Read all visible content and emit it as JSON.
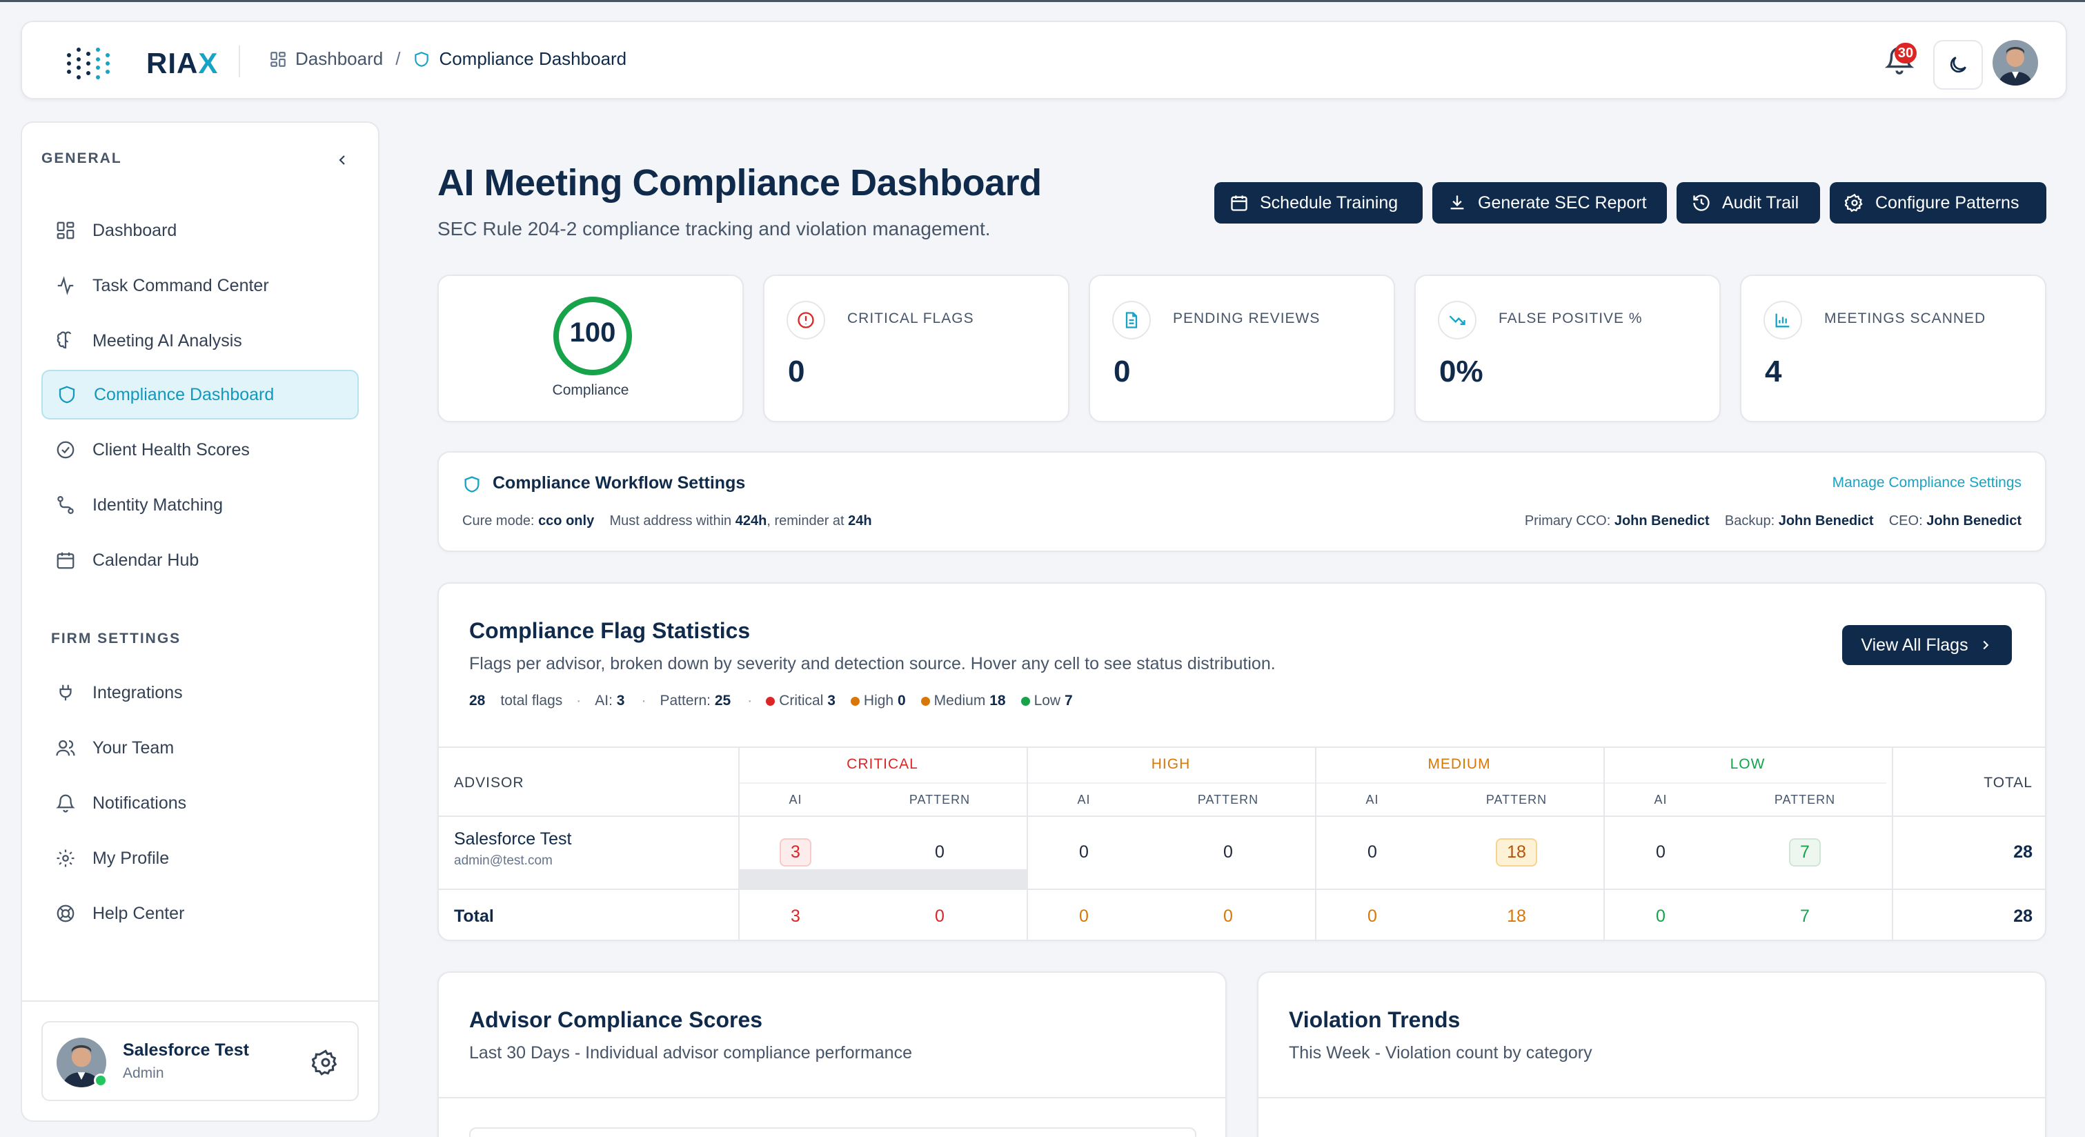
{
  "app": {
    "logo_text": "RIA",
    "logo_accent": "X"
  },
  "breadcrumb": {
    "home": "Dashboard",
    "separator": "/",
    "current": "Compliance Dashboard"
  },
  "header": {
    "notification_count": "30"
  },
  "sidebar": {
    "general_label": "GENERAL",
    "firm_label": "FIRM SETTINGS",
    "general_items": [
      {
        "label": "Dashboard",
        "icon": "grid-icon"
      },
      {
        "label": "Task Command Center",
        "icon": "activity-icon"
      },
      {
        "label": "Meeting AI Analysis",
        "icon": "brain-icon"
      },
      {
        "label": "Compliance Dashboard",
        "icon": "shield-icon",
        "active": true
      },
      {
        "label": "Client Health Scores",
        "icon": "check-circle-icon"
      },
      {
        "label": "Identity Matching",
        "icon": "route-icon"
      },
      {
        "label": "Calendar Hub",
        "icon": "calendar-icon"
      }
    ],
    "firm_items": [
      {
        "label": "Integrations",
        "icon": "plug-icon"
      },
      {
        "label": "Your Team",
        "icon": "users-icon"
      },
      {
        "label": "Notifications",
        "icon": "bell-icon"
      },
      {
        "label": "My Profile",
        "icon": "gear-icon"
      },
      {
        "label": "Help Center",
        "icon": "lifebuoy-icon"
      }
    ],
    "user": {
      "name": "Salesforce Test",
      "role": "Admin"
    }
  },
  "page": {
    "title": "AI Meeting Compliance Dashboard",
    "subtitle": "SEC Rule 204-2 compliance tracking and violation management."
  },
  "actions": {
    "schedule_training": "Schedule Training",
    "generate_report": "Generate SEC Report",
    "audit_trail": "Audit Trail",
    "configure_patterns": "Configure Patterns"
  },
  "stats": {
    "compliance_score": "100",
    "compliance_score_value": 100,
    "compliance_label": "Compliance",
    "critical_flags_label": "CRITICAL FLAGS",
    "critical_flags": "0",
    "pending_reviews_label": "PENDING REVIEWS",
    "pending_reviews": "0",
    "false_positive_label": "FALSE POSITIVE %",
    "false_positive": "0%",
    "meetings_scanned_label": "MEETINGS SCANNED",
    "meetings_scanned": "4"
  },
  "workflow": {
    "title": "Compliance Workflow Settings",
    "manage_link": "Manage Compliance Settings",
    "cure_mode_label": "Cure mode:",
    "cure_mode": "cco only",
    "address_label": "Must address within",
    "address_within": "424h",
    "reminder_label": ", reminder at",
    "reminder_at": "24h",
    "primary_cco_label": "Primary CCO:",
    "primary_cco": "John Benedict",
    "backup_label": "Backup:",
    "backup": "John Benedict",
    "ceo_label": "CEO:",
    "ceo": "John Benedict"
  },
  "flag_stats": {
    "title": "Compliance Flag Statistics",
    "subtitle": "Flags per advisor, broken down by severity and detection source. Hover any cell to see status distribution.",
    "view_all": "View All Flags",
    "total": "28",
    "total_label": "total flags",
    "ai_label": "AI:",
    "ai": "3",
    "pattern_label": "Pattern:",
    "pattern": "25",
    "critical_label": "Critical",
    "critical": "3",
    "high_label": "High",
    "high": "0",
    "medium_label": "Medium",
    "medium": "18",
    "low_label": "Low",
    "low": "7",
    "colors": {
      "critical": "#dc2626",
      "high": "#d97706",
      "medium": "#d97706",
      "low": "#16a34a"
    },
    "table": {
      "advisor_header": "ADVISOR",
      "total_header": "TOTAL",
      "severity_headers": [
        "CRITICAL",
        "HIGH",
        "MEDIUM",
        "LOW"
      ],
      "sub_headers": [
        "AI",
        "PATTERN"
      ],
      "row": {
        "name": "Salesforce Test",
        "email": "admin@test.com",
        "values": [
          "3",
          "0",
          "0",
          "0",
          "0",
          "18",
          "0",
          "7"
        ],
        "total": "28"
      },
      "total_row": {
        "label": "Total",
        "values": [
          "3",
          "0",
          "0",
          "0",
          "0",
          "18",
          "0",
          "7"
        ],
        "total": "28"
      }
    }
  },
  "advisor_scores": {
    "title": "Advisor Compliance Scores",
    "subtitle": "Last 30 Days - Individual advisor compliance performance"
  },
  "violation_trends": {
    "title": "Violation Trends",
    "subtitle": "This Week - Violation count by category"
  }
}
